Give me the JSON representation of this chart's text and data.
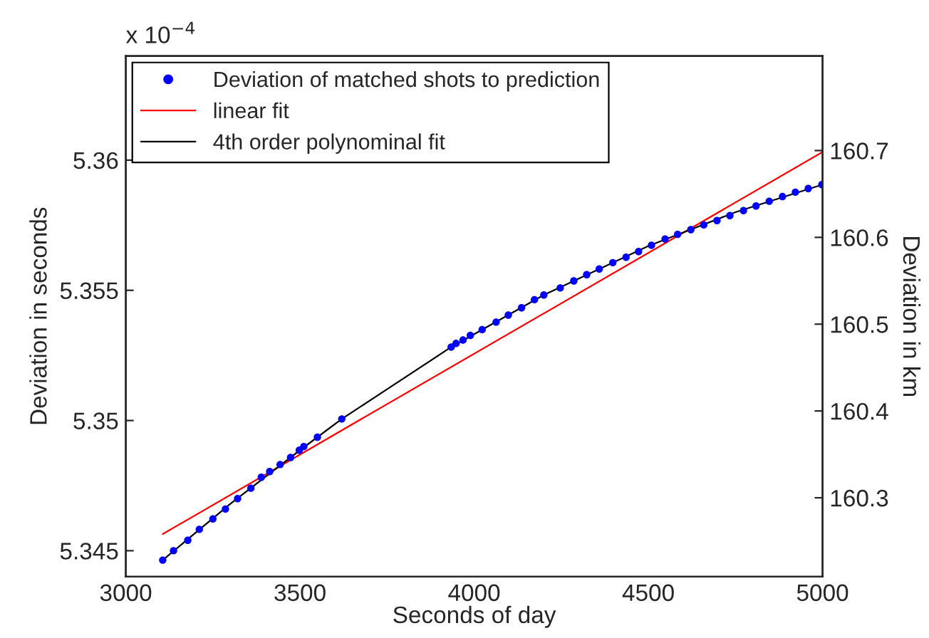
{
  "chart_data": {
    "type": "scatter",
    "xlabel": "Seconds of day",
    "ylabel": "Deviation in seconds",
    "y2label": "Deviation in km",
    "annotations": [
      "x 10$^{−4}$"
    ],
    "xlim": [
      3000,
      5000
    ],
    "xticks": [
      3000,
      3500,
      4000,
      4500,
      5000
    ],
    "ylim": [
      5.344,
      5.364
    ],
    "yticks": [
      5.345,
      5.35,
      5.355,
      5.36
    ],
    "y2lim": [
      160.209,
      160.809
    ],
    "y2ticks": [
      160.3,
      160.4,
      160.5,
      160.6,
      160.7
    ],
    "grid": false,
    "legend": "top left",
    "series": [
      {
        "name": "Deviation of matched shots to prediction",
        "marker": "circle",
        "color": "#0000ff",
        "x": [
          3106,
          3137,
          3178,
          3211,
          3250,
          3286,
          3321,
          3359,
          3389,
          3413,
          3443,
          3473,
          3498,
          3511,
          3550,
          3620,
          3934,
          3948,
          3968,
          3989,
          4023,
          4063,
          4098,
          4136,
          4173,
          4200,
          4247,
          4286,
          4323,
          4359,
          4398,
          4436,
          4472,
          4509,
          4548,
          4584,
          4622,
          4659,
          4697,
          4734,
          4773,
          4809,
          4847,
          4885,
          4922,
          4959,
          4998
        ],
        "values": [
          5.34464,
          5.345,
          5.3454,
          5.34582,
          5.34622,
          5.3466,
          5.347,
          5.3474,
          5.34782,
          5.34804,
          5.34831,
          5.34858,
          5.34886,
          5.349,
          5.34936,
          5.35006,
          5.35282,
          5.35296,
          5.35309,
          5.35327,
          5.35349,
          5.35378,
          5.35405,
          5.35433,
          5.35464,
          5.35482,
          5.35509,
          5.35536,
          5.3556,
          5.35582,
          5.35606,
          5.35627,
          5.35649,
          5.35673,
          5.35697,
          5.35715,
          5.35733,
          5.35751,
          5.35768,
          5.35787,
          5.35806,
          5.35824,
          5.35842,
          5.3586,
          5.35877,
          5.35891,
          5.35906
        ]
      },
      {
        "name": "linear fit",
        "type": "line",
        "line_style": "solid",
        "color": "#ff0000",
        "x": [
          3106,
          5000
        ],
        "values": [
          5.34564,
          5.36031
        ]
      },
      {
        "name": "4th order polynominal fit",
        "type": "line",
        "line_style": "solid",
        "color": "#000000",
        "x": [
          3106,
          3300,
          3500,
          3620,
          3750,
          3934,
          4200,
          4500,
          4750,
          5000
        ],
        "values": [
          5.34464,
          5.3468,
          5.34886,
          5.35006,
          5.3512,
          5.35282,
          5.35482,
          5.3567,
          5.358,
          5.35906
        ]
      }
    ]
  }
}
